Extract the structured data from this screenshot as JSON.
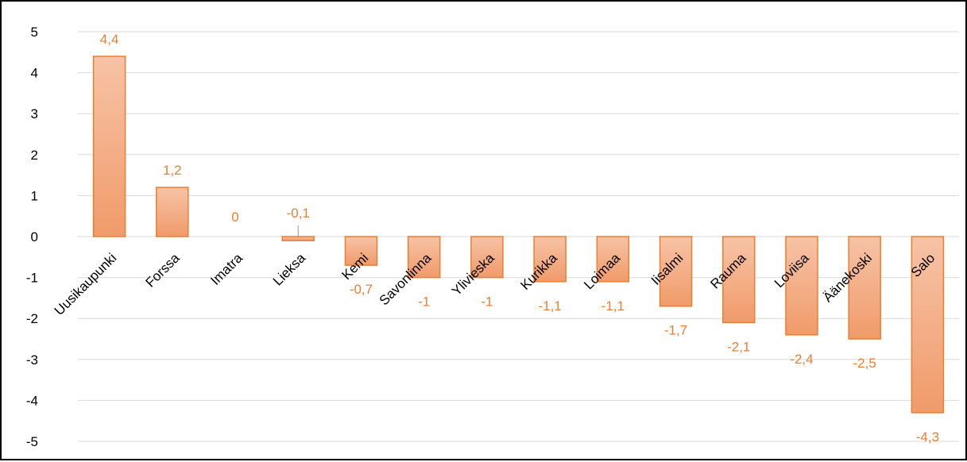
{
  "chart_data": {
    "type": "bar",
    "categories": [
      "Uusikaupunki",
      "Forssa",
      "Imatra",
      "Lieksa",
      "Kemi",
      "Savonlinna",
      "Ylivieska",
      "Kurikka",
      "Loimaa",
      "Iisalmi",
      "Rauma",
      "Loviisa",
      "Äänekoski",
      "Salo"
    ],
    "values": [
      4.4,
      1.2,
      0,
      -0.1,
      -0.7,
      -1,
      -1,
      -1.1,
      -1.1,
      -1.7,
      -2.1,
      -2.4,
      -2.5,
      -4.3
    ],
    "value_labels": [
      "4,4",
      "1,2",
      "0",
      "-0,1",
      "-0,7",
      "-1",
      "-1",
      "-1,1",
      "-1,1",
      "-1,7",
      "-2,1",
      "-2,4",
      "-2,5",
      "-4,3"
    ],
    "y_ticks": [
      5,
      4,
      3,
      2,
      1,
      0,
      -1,
      -2,
      -3,
      -4,
      -5
    ],
    "y_tick_labels": [
      "5",
      "4",
      "3",
      "2",
      "1",
      "0",
      "-1",
      "-2",
      "-3",
      "-4",
      "-5"
    ],
    "ylim": [
      -5.3,
      5.1
    ],
    "title": "",
    "xlabel": "",
    "ylabel": "",
    "grid": true,
    "legend": "none",
    "bar_color_light": "#f7c3a6",
    "bar_color_dark": "#f09b6a",
    "bar_stroke": "#ed7d31",
    "label_color": "#ed7d31",
    "grid_color": "#d9d9d9"
  }
}
